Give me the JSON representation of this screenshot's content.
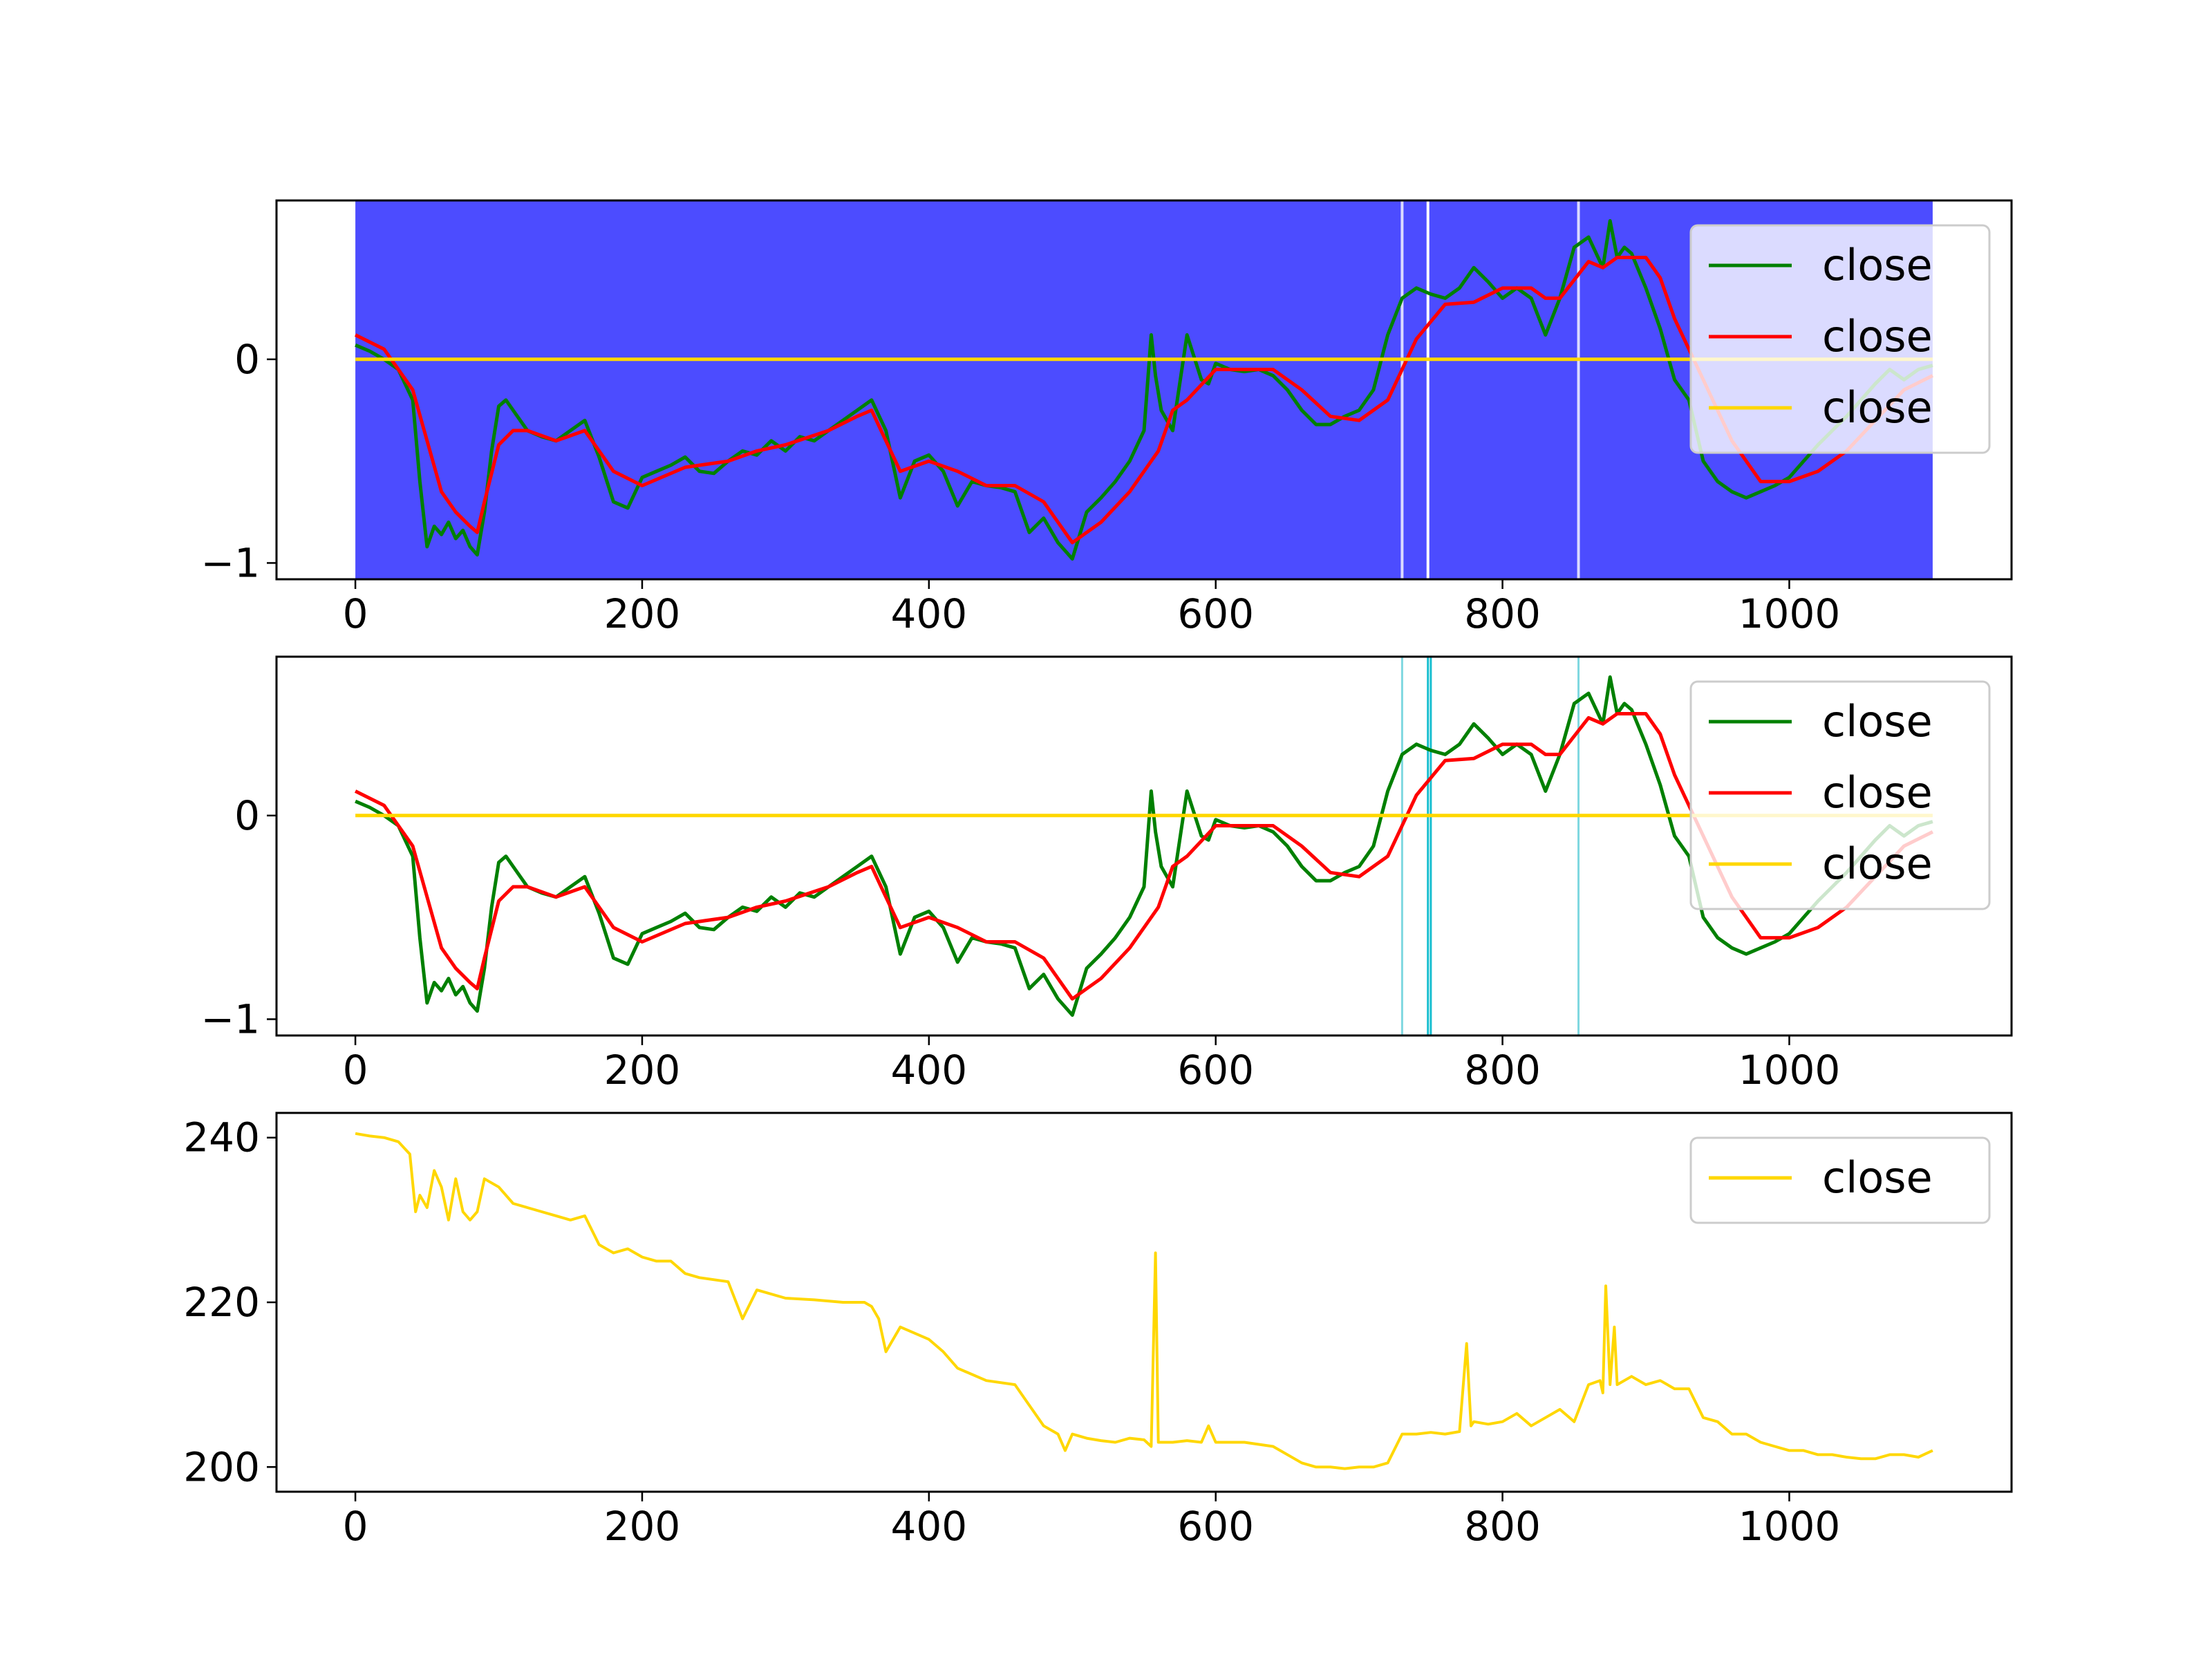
{
  "chart_data": [
    {
      "type": "line",
      "title": "",
      "xlabel": "",
      "ylabel": "",
      "xlim": [
        -55,
        1155
      ],
      "ylim": [
        -1.08,
        0.78
      ],
      "xticks": [
        0,
        200,
        400,
        600,
        800,
        1000
      ],
      "yticks": [
        -1,
        0
      ],
      "ytick_labels": [
        "−1",
        "0"
      ],
      "grid": false,
      "legend_position": "top-right",
      "background_span": {
        "x": [
          0,
          1100
        ],
        "color": "#4c4cff"
      },
      "gaps": [
        730,
        748,
        853
      ],
      "series": [
        {
          "name": "close",
          "color": "#008000",
          "x": [
            0,
            10,
            20,
            30,
            40,
            45,
            50,
            55,
            60,
            65,
            70,
            75,
            80,
            85,
            90,
            95,
            100,
            105,
            110,
            120,
            130,
            140,
            150,
            160,
            170,
            180,
            190,
            200,
            210,
            220,
            230,
            240,
            250,
            260,
            270,
            280,
            290,
            300,
            310,
            320,
            330,
            340,
            350,
            360,
            370,
            380,
            390,
            400,
            410,
            420,
            430,
            440,
            450,
            460,
            470,
            480,
            490,
            500,
            510,
            520,
            530,
            540,
            550,
            555,
            558,
            562,
            570,
            580,
            590,
            595,
            600,
            610,
            620,
            630,
            640,
            650,
            660,
            670,
            680,
            690,
            700,
            710,
            720,
            730,
            740,
            750,
            760,
            770,
            780,
            790,
            800,
            810,
            820,
            830,
            840,
            850,
            860,
            870,
            875,
            880,
            885,
            890,
            900,
            910,
            920,
            930,
            940,
            950,
            960,
            970,
            980,
            990,
            1000,
            1010,
            1020,
            1030,
            1040,
            1050,
            1060,
            1070,
            1080,
            1090,
            1100
          ],
          "y": [
            0.07,
            0.04,
            0.0,
            -0.05,
            -0.2,
            -0.6,
            -0.92,
            -0.82,
            -0.86,
            -0.8,
            -0.88,
            -0.84,
            -0.92,
            -0.96,
            -0.75,
            -0.45,
            -0.23,
            -0.2,
            -0.25,
            -0.35,
            -0.38,
            -0.4,
            -0.35,
            -0.3,
            -0.48,
            -0.7,
            -0.73,
            -0.58,
            -0.55,
            -0.52,
            -0.48,
            -0.55,
            -0.56,
            -0.5,
            -0.45,
            -0.47,
            -0.4,
            -0.45,
            -0.38,
            -0.4,
            -0.35,
            -0.3,
            -0.25,
            -0.2,
            -0.35,
            -0.68,
            -0.5,
            -0.47,
            -0.55,
            -0.72,
            -0.6,
            -0.62,
            -0.63,
            -0.65,
            -0.85,
            -0.78,
            -0.9,
            -0.98,
            -0.75,
            -0.68,
            -0.6,
            -0.5,
            -0.35,
            0.12,
            -0.08,
            -0.25,
            -0.35,
            0.12,
            -0.1,
            -0.12,
            -0.02,
            -0.05,
            -0.06,
            -0.05,
            -0.08,
            -0.15,
            -0.25,
            -0.32,
            -0.32,
            -0.28,
            -0.25,
            -0.15,
            0.12,
            0.3,
            0.35,
            0.32,
            0.3,
            0.35,
            0.45,
            0.38,
            0.3,
            0.35,
            0.3,
            0.12,
            0.3,
            0.55,
            0.6,
            0.45,
            0.68,
            0.5,
            0.55,
            0.52,
            0.35,
            0.15,
            -0.1,
            -0.2,
            -0.5,
            -0.6,
            -0.65,
            -0.68,
            -0.65,
            -0.62,
            -0.58,
            -0.5,
            -0.42,
            -0.35,
            -0.28,
            -0.2,
            -0.12,
            -0.05,
            -0.1,
            -0.05,
            -0.03
          ]
        },
        {
          "name": "close",
          "color": "#ff0000",
          "x": [
            0,
            20,
            40,
            60,
            70,
            80,
            85,
            90,
            100,
            110,
            120,
            140,
            160,
            180,
            200,
            230,
            260,
            280,
            300,
            330,
            350,
            360,
            370,
            380,
            400,
            420,
            440,
            460,
            480,
            500,
            520,
            540,
            560,
            570,
            580,
            600,
            620,
            640,
            660,
            680,
            700,
            720,
            740,
            760,
            780,
            800,
            820,
            830,
            840,
            860,
            870,
            880,
            890,
            900,
            910,
            920,
            940,
            960,
            980,
            1000,
            1020,
            1040,
            1060,
            1080,
            1100
          ],
          "y": [
            0.12,
            0.05,
            -0.15,
            -0.65,
            -0.75,
            -0.82,
            -0.85,
            -0.7,
            -0.42,
            -0.35,
            -0.35,
            -0.4,
            -0.35,
            -0.55,
            -0.62,
            -0.53,
            -0.5,
            -0.45,
            -0.42,
            -0.35,
            -0.28,
            -0.25,
            -0.4,
            -0.55,
            -0.5,
            -0.55,
            -0.62,
            -0.62,
            -0.7,
            -0.9,
            -0.8,
            -0.65,
            -0.45,
            -0.25,
            -0.2,
            -0.05,
            -0.05,
            -0.05,
            -0.15,
            -0.28,
            -0.3,
            -0.2,
            0.1,
            0.27,
            0.28,
            0.35,
            0.35,
            0.3,
            0.3,
            0.48,
            0.45,
            0.5,
            0.5,
            0.5,
            0.4,
            0.2,
            -0.1,
            -0.4,
            -0.6,
            -0.6,
            -0.55,
            -0.45,
            -0.3,
            -0.15,
            -0.08
          ]
        },
        {
          "name": "close",
          "color": "#ffd700",
          "x": [
            0,
            1100
          ],
          "y": [
            0,
            0
          ]
        }
      ]
    },
    {
      "type": "line",
      "title": "",
      "xlabel": "",
      "ylabel": "",
      "xlim": [
        -55,
        1155
      ],
      "ylim": [
        -1.08,
        0.78
      ],
      "xticks": [
        0,
        200,
        400,
        600,
        800,
        1000
      ],
      "yticks": [
        -1,
        0
      ],
      "ytick_labels": [
        "−1",
        "0"
      ],
      "grid": false,
      "legend_position": "top-right",
      "vlines": [
        {
          "x": 730,
          "color": "#7fd8e0"
        },
        {
          "x": 748,
          "color": "#17becf"
        },
        {
          "x": 750,
          "color": "#17becf"
        },
        {
          "x": 853,
          "color": "#7fd8e0"
        }
      ],
      "series": [
        {
          "name": "close",
          "color": "#008000",
          "same_as": "first chart green series"
        },
        {
          "name": "close",
          "color": "#ff0000",
          "same_as": "first chart red series"
        },
        {
          "name": "close",
          "color": "#ffd700",
          "x": [
            0,
            1100
          ],
          "y": [
            0,
            0
          ]
        }
      ]
    },
    {
      "type": "line",
      "title": "",
      "xlabel": "",
      "ylabel": "",
      "xlim": [
        -55,
        1155
      ],
      "ylim": [
        197,
        243
      ],
      "xticks": [
        0,
        200,
        400,
        600,
        800,
        1000
      ],
      "yticks": [
        200,
        220,
        240
      ],
      "ytick_labels": [
        "200",
        "220",
        "240"
      ],
      "grid": false,
      "legend_position": "top-right",
      "series": [
        {
          "name": "close",
          "color": "#ffd700",
          "x": [
            0,
            10,
            20,
            30,
            38,
            42,
            45,
            50,
            55,
            60,
            65,
            70,
            75,
            80,
            85,
            90,
            100,
            110,
            120,
            130,
            140,
            150,
            160,
            170,
            180,
            190,
            200,
            210,
            220,
            230,
            240,
            260,
            270,
            280,
            300,
            320,
            340,
            355,
            360,
            365,
            370,
            380,
            400,
            410,
            420,
            440,
            460,
            470,
            480,
            490,
            495,
            500,
            510,
            520,
            530,
            540,
            550,
            555,
            558,
            560,
            570,
            580,
            590,
            595,
            600,
            620,
            640,
            660,
            670,
            680,
            690,
            700,
            710,
            720,
            730,
            740,
            750,
            760,
            770,
            775,
            778,
            780,
            790,
            800,
            810,
            820,
            830,
            840,
            850,
            860,
            868,
            870,
            872,
            875,
            878,
            880,
            890,
            900,
            910,
            920,
            930,
            940,
            950,
            960,
            970,
            980,
            990,
            1000,
            1010,
            1020,
            1030,
            1040,
            1050,
            1060,
            1070,
            1080,
            1090,
            1100
          ],
          "y": [
            240.5,
            240.2,
            240,
            239.5,
            238,
            231,
            233,
            231.5,
            236,
            234,
            230,
            235,
            231,
            230,
            231,
            235,
            234,
            232,
            231.5,
            231,
            230.5,
            230,
            230.5,
            227,
            226,
            226.5,
            225.5,
            225,
            225,
            223.5,
            223,
            222.5,
            218,
            221.5,
            220.5,
            220.3,
            220,
            220,
            219.5,
            218,
            214,
            217,
            215.5,
            214,
            212,
            210.5,
            210,
            207.5,
            205,
            204,
            202,
            204,
            203.5,
            203.2,
            203,
            203.5,
            203.3,
            202.5,
            226,
            203,
            203,
            203.2,
            203,
            205,
            203,
            203,
            202.5,
            200.5,
            200,
            200,
            199.8,
            200,
            200,
            200.5,
            204,
            204,
            204.2,
            204,
            204.3,
            215,
            205,
            205.5,
            205.2,
            205.5,
            206.5,
            205,
            206,
            207,
            205.5,
            210,
            210.5,
            209,
            222,
            210,
            217,
            210,
            211,
            210,
            210.5,
            209.5,
            209.5,
            206,
            205.5,
            204,
            204,
            203,
            202.5,
            202,
            202,
            201.5,
            201.5,
            201.2,
            201,
            201,
            201.5,
            201.5,
            201.2,
            202
          ]
        }
      ]
    }
  ],
  "legend": {
    "label": "close"
  }
}
